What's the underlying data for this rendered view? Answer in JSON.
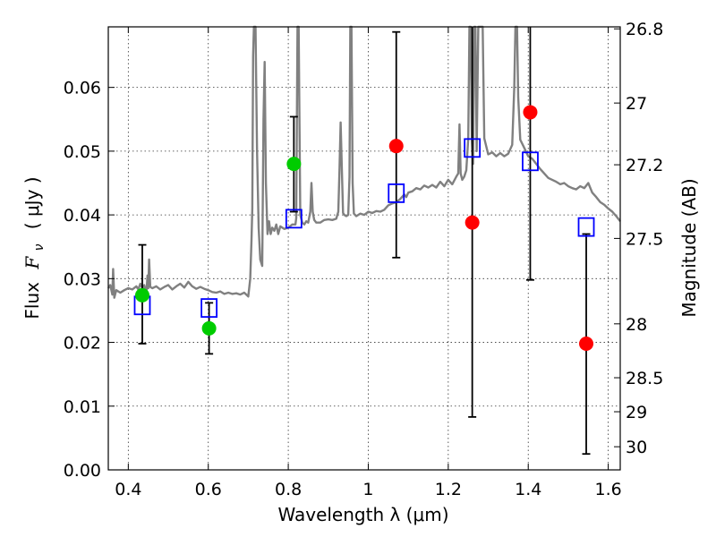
{
  "chart_data": {
    "type": "scatter",
    "title": "",
    "xlabel": "Wavelength  λ (μm)",
    "ylabel": "Flux  F_ν  ( μJy )",
    "ylabel_parts": {
      "prefix": "Flux",
      "symbol": "F",
      "subscript": "ν",
      "unit": "( μJy )"
    },
    "y2label": "Magnitude (AB)",
    "xlim": [
      0.35,
      1.63
    ],
    "ylim": [
      0.0,
      0.0695
    ],
    "grid": true,
    "x_ticks": [
      {
        "value": 0.4,
        "label": "0.4"
      },
      {
        "value": 0.6,
        "label": "0.6"
      },
      {
        "value": 0.8,
        "label": "0.8"
      },
      {
        "value": 1.0,
        "label": "1"
      },
      {
        "value": 1.2,
        "label": "1.2"
      },
      {
        "value": 1.4,
        "label": "1.4"
      },
      {
        "value": 1.6,
        "label": "1.6"
      }
    ],
    "y_ticks": [
      {
        "value": 0.0,
        "label": "0.00"
      },
      {
        "value": 0.01,
        "label": "0.01"
      },
      {
        "value": 0.02,
        "label": "0.02"
      },
      {
        "value": 0.03,
        "label": "0.03"
      },
      {
        "value": 0.04,
        "label": "0.04"
      },
      {
        "value": 0.05,
        "label": "0.05"
      },
      {
        "value": 0.06,
        "label": "0.06"
      }
    ],
    "mag_ticks": [
      {
        "value": 26.8,
        "label": "26.8"
      },
      {
        "value": 27.0,
        "label": "27"
      },
      {
        "value": 27.2,
        "label": "27.2"
      },
      {
        "value": 27.5,
        "label": "27.5"
      },
      {
        "value": 28.0,
        "label": "28"
      },
      {
        "value": 28.5,
        "label": "28.5"
      },
      {
        "value": 29.0,
        "label": "29"
      },
      {
        "value": 30.0,
        "label": "30"
      }
    ],
    "series": [
      {
        "kind": "spectrum",
        "color": "#808080",
        "points": [
          [
            0.35,
            0.0285
          ],
          [
            0.355,
            0.029
          ],
          [
            0.36,
            0.0275
          ],
          [
            0.362,
            0.0315
          ],
          [
            0.365,
            0.027
          ],
          [
            0.37,
            0.0282
          ],
          [
            0.38,
            0.0278
          ],
          [
            0.39,
            0.0282
          ],
          [
            0.4,
            0.0285
          ],
          [
            0.41,
            0.0283
          ],
          [
            0.42,
            0.0288
          ],
          [
            0.425,
            0.0283
          ],
          [
            0.43,
            0.0292
          ],
          [
            0.435,
            0.0285
          ],
          [
            0.44,
            0.029
          ],
          [
            0.445,
            0.0275
          ],
          [
            0.448,
            0.0305
          ],
          [
            0.45,
            0.0285
          ],
          [
            0.452,
            0.033
          ],
          [
            0.455,
            0.0287
          ],
          [
            0.46,
            0.0285
          ],
          [
            0.47,
            0.0288
          ],
          [
            0.48,
            0.0283
          ],
          [
            0.49,
            0.0287
          ],
          [
            0.5,
            0.029
          ],
          [
            0.51,
            0.0283
          ],
          [
            0.52,
            0.0288
          ],
          [
            0.53,
            0.0292
          ],
          [
            0.54,
            0.0286
          ],
          [
            0.55,
            0.0295
          ],
          [
            0.56,
            0.0288
          ],
          [
            0.57,
            0.0284
          ],
          [
            0.58,
            0.0287
          ],
          [
            0.59,
            0.0284
          ],
          [
            0.6,
            0.0282
          ],
          [
            0.61,
            0.0279
          ],
          [
            0.62,
            0.0278
          ],
          [
            0.63,
            0.028
          ],
          [
            0.64,
            0.0276
          ],
          [
            0.65,
            0.0278
          ],
          [
            0.66,
            0.0276
          ],
          [
            0.67,
            0.0277
          ],
          [
            0.68,
            0.0275
          ],
          [
            0.69,
            0.0278
          ],
          [
            0.7,
            0.0272
          ],
          [
            0.705,
            0.03
          ],
          [
            0.708,
            0.036
          ],
          [
            0.71,
            0.041
          ],
          [
            0.712,
            0.065
          ],
          [
            0.714,
            0.0695
          ],
          [
            0.718,
            0.0695
          ],
          [
            0.722,
            0.05
          ],
          [
            0.726,
            0.038
          ],
          [
            0.73,
            0.033
          ],
          [
            0.735,
            0.032
          ],
          [
            0.738,
            0.055
          ],
          [
            0.741,
            0.064
          ],
          [
            0.744,
            0.045
          ],
          [
            0.748,
            0.037
          ],
          [
            0.752,
            0.039
          ],
          [
            0.756,
            0.037
          ],
          [
            0.76,
            0.038
          ],
          [
            0.765,
            0.0375
          ],
          [
            0.77,
            0.0385
          ],
          [
            0.775,
            0.037
          ],
          [
            0.78,
            0.0382
          ],
          [
            0.79,
            0.0378
          ],
          [
            0.8,
            0.038
          ],
          [
            0.81,
            0.0385
          ],
          [
            0.818,
            0.0385
          ],
          [
            0.82,
            0.0395
          ],
          [
            0.823,
            0.0695
          ],
          [
            0.826,
            0.0695
          ],
          [
            0.83,
            0.04
          ],
          [
            0.835,
            0.0388
          ],
          [
            0.84,
            0.0385
          ],
          [
            0.845,
            0.039
          ],
          [
            0.85,
            0.0388
          ],
          [
            0.855,
            0.0405
          ],
          [
            0.858,
            0.045
          ],
          [
            0.861,
            0.0405
          ],
          [
            0.865,
            0.0392
          ],
          [
            0.87,
            0.0388
          ],
          [
            0.88,
            0.0388
          ],
          [
            0.89,
            0.0392
          ],
          [
            0.9,
            0.0393
          ],
          [
            0.91,
            0.0392
          ],
          [
            0.92,
            0.0394
          ],
          [
            0.925,
            0.0405
          ],
          [
            0.928,
            0.047
          ],
          [
            0.931,
            0.0545
          ],
          [
            0.934,
            0.047
          ],
          [
            0.937,
            0.0403
          ],
          [
            0.94,
            0.04
          ],
          [
            0.945,
            0.0398
          ],
          [
            0.95,
            0.04
          ],
          [
            0.953,
            0.046
          ],
          [
            0.955,
            0.0695
          ],
          [
            0.958,
            0.0695
          ],
          [
            0.961,
            0.045
          ],
          [
            0.964,
            0.0402
          ],
          [
            0.97,
            0.0398
          ],
          [
            0.98,
            0.0402
          ],
          [
            0.99,
            0.04
          ],
          [
            1.0,
            0.0405
          ],
          [
            1.01,
            0.0403
          ],
          [
            1.02,
            0.0406
          ],
          [
            1.03,
            0.0405
          ],
          [
            1.04,
            0.0408
          ],
          [
            1.05,
            0.0415
          ],
          [
            1.06,
            0.0418
          ],
          [
            1.07,
            0.042
          ],
          [
            1.08,
            0.0425
          ],
          [
            1.09,
            0.0432
          ],
          [
            1.095,
            0.0428
          ],
          [
            1.1,
            0.0435
          ],
          [
            1.11,
            0.0437
          ],
          [
            1.12,
            0.0442
          ],
          [
            1.13,
            0.044
          ],
          [
            1.14,
            0.0446
          ],
          [
            1.15,
            0.0443
          ],
          [
            1.16,
            0.0447
          ],
          [
            1.17,
            0.0443
          ],
          [
            1.18,
            0.0452
          ],
          [
            1.19,
            0.0445
          ],
          [
            1.2,
            0.0455
          ],
          [
            1.21,
            0.0448
          ],
          [
            1.22,
            0.046
          ],
          [
            1.225,
            0.0465
          ],
          [
            1.228,
            0.0542
          ],
          [
            1.231,
            0.0465
          ],
          [
            1.235,
            0.0455
          ],
          [
            1.24,
            0.046
          ],
          [
            1.245,
            0.047
          ],
          [
            1.25,
            0.052
          ],
          [
            1.253,
            0.0695
          ],
          [
            1.256,
            0.0695
          ],
          [
            1.259,
            0.052
          ],
          [
            1.262,
            0.048
          ],
          [
            1.265,
            0.0695
          ],
          [
            1.268,
            0.0695
          ],
          [
            1.271,
            0.05
          ],
          [
            1.275,
            0.0695
          ],
          [
            1.28,
            0.0695
          ],
          [
            1.286,
            0.0695
          ],
          [
            1.29,
            0.052
          ],
          [
            1.3,
            0.0495
          ],
          [
            1.31,
            0.0498
          ],
          [
            1.32,
            0.0492
          ],
          [
            1.33,
            0.0497
          ],
          [
            1.34,
            0.0492
          ],
          [
            1.35,
            0.0496
          ],
          [
            1.36,
            0.051
          ],
          [
            1.365,
            0.06
          ],
          [
            1.368,
            0.0695
          ],
          [
            1.372,
            0.0695
          ],
          [
            1.375,
            0.0585
          ],
          [
            1.38,
            0.0518
          ],
          [
            1.39,
            0.0505
          ],
          [
            1.4,
            0.0492
          ],
          [
            1.41,
            0.0488
          ],
          [
            1.42,
            0.048
          ],
          [
            1.43,
            0.0472
          ],
          [
            1.44,
            0.0465
          ],
          [
            1.45,
            0.0458
          ],
          [
            1.46,
            0.0455
          ],
          [
            1.47,
            0.0452
          ],
          [
            1.48,
            0.0448
          ],
          [
            1.49,
            0.045
          ],
          [
            1.5,
            0.0445
          ],
          [
            1.51,
            0.0442
          ],
          [
            1.52,
            0.044
          ],
          [
            1.53,
            0.0445
          ],
          [
            1.54,
            0.0442
          ],
          [
            1.55,
            0.045
          ],
          [
            1.56,
            0.0435
          ],
          [
            1.57,
            0.0428
          ],
          [
            1.58,
            0.042
          ],
          [
            1.59,
            0.0416
          ],
          [
            1.6,
            0.041
          ],
          [
            1.61,
            0.0405
          ],
          [
            1.62,
            0.0398
          ],
          [
            1.63,
            0.039
          ]
        ]
      },
      {
        "kind": "model-boxes",
        "color": "#0000ff",
        "points": [
          {
            "x": 0.435,
            "y": 0.0258
          },
          {
            "x": 0.602,
            "y": 0.0254
          },
          {
            "x": 0.814,
            "y": 0.0394
          },
          {
            "x": 1.07,
            "y": 0.0434
          },
          {
            "x": 1.26,
            "y": 0.0505
          },
          {
            "x": 1.405,
            "y": 0.0484
          },
          {
            "x": 1.545,
            "y": 0.0381
          }
        ]
      },
      {
        "kind": "detections",
        "color": "#00cc00",
        "points": [
          {
            "x": 0.435,
            "y": 0.0274,
            "yerr_lo": 0.0198,
            "yerr_hi": 0.0353
          },
          {
            "x": 0.602,
            "y": 0.0222,
            "yerr_lo": 0.0182,
            "yerr_hi": 0.0262
          },
          {
            "x": 0.814,
            "y": 0.048,
            "yerr_lo": 0.0405,
            "yerr_hi": 0.0554
          }
        ]
      },
      {
        "kind": "detections",
        "color": "#ff0000",
        "points": [
          {
            "x": 1.07,
            "y": 0.0508,
            "yerr_lo": 0.0333,
            "yerr_hi": 0.0687
          },
          {
            "x": 1.26,
            "y": 0.0388,
            "yerr_lo": 0.0083,
            "yerr_hi": 0.0695
          },
          {
            "x": 1.405,
            "y": 0.0561,
            "yerr_lo": 0.0298,
            "yerr_hi": 0.0695
          },
          {
            "x": 1.545,
            "y": 0.0198,
            "yerr_lo": 0.0025,
            "yerr_hi": 0.037
          }
        ]
      }
    ]
  }
}
